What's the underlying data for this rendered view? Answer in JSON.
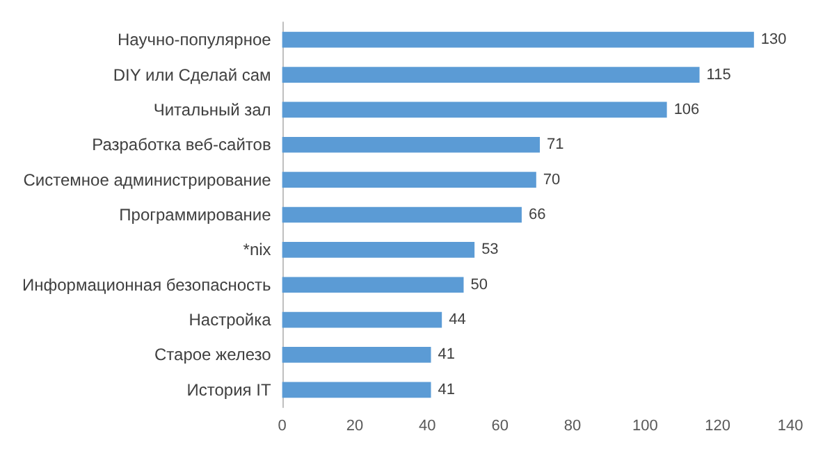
{
  "chart_data": {
    "type": "bar",
    "orientation": "horizontal",
    "categories": [
      "Научно-популярное",
      "DIY или Сделай сам",
      "Читальный зал",
      "Разработка веб-сайтов",
      "Системное администрирование",
      "Программирование",
      "*nix",
      "Информационная безопасность",
      "Настройка",
      "Старое железо",
      "История IT"
    ],
    "values": [
      130,
      115,
      106,
      71,
      70,
      66,
      53,
      50,
      44,
      41,
      41
    ],
    "color": "#5b9bd5",
    "xlim": [
      0,
      140
    ],
    "xticks": [
      0,
      20,
      40,
      60,
      80,
      100,
      120,
      140
    ],
    "grid": false,
    "data_labels": true
  }
}
